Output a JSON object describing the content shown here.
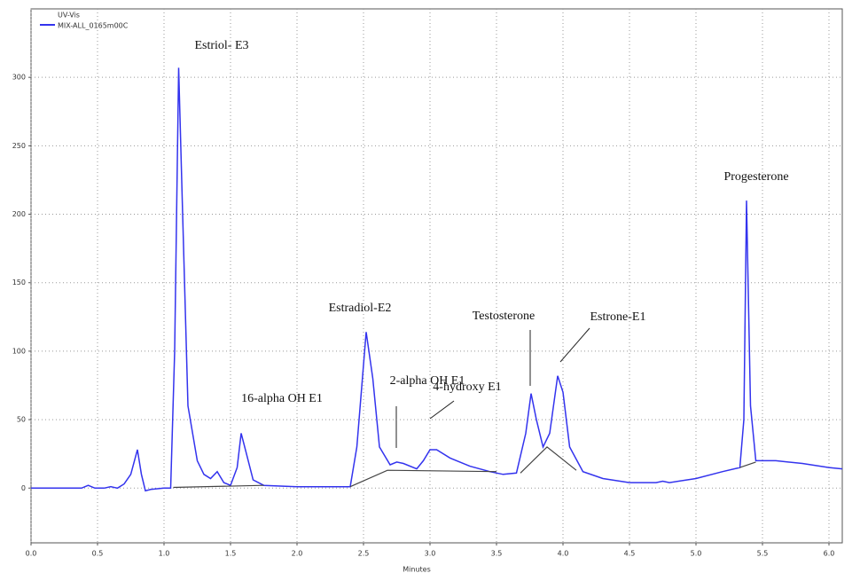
{
  "chart_data": {
    "type": "line",
    "legend_title": "UV-Vis",
    "x_label": "Minutes",
    "xlim": [
      0,
      6.1
    ],
    "ylim": [
      -40,
      350
    ],
    "xticks": [
      {
        "value": 0,
        "label": "0.0"
      },
      {
        "value": 0.5,
        "label": "0.5"
      },
      {
        "value": 1,
        "label": "1.0"
      },
      {
        "value": 1.5,
        "label": "1.5"
      },
      {
        "value": 2,
        "label": "2.0"
      },
      {
        "value": 2.5,
        "label": "2.5"
      },
      {
        "value": 3,
        "label": "3.0"
      },
      {
        "value": 3.5,
        "label": "3.5"
      },
      {
        "value": 4,
        "label": "4.0"
      },
      {
        "value": 4.5,
        "label": "4.5"
      },
      {
        "value": 5,
        "label": "5.0"
      },
      {
        "value": 5.5,
        "label": "5.5"
      },
      {
        "value": 6,
        "label": "6.0"
      }
    ],
    "yticks": [
      0,
      50,
      100,
      150,
      200,
      250,
      300
    ],
    "grid": true,
    "legend": "upper left",
    "series": [
      {
        "name": "MIX-ALL_0165m00C",
        "color": "#3333ee",
        "x": [
          0,
          0.38,
          0.43,
          0.48,
          0.55,
          0.6,
          0.65,
          0.7,
          0.75,
          0.8,
          0.83,
          0.86,
          0.9,
          1.0,
          1.05,
          1.08,
          1.11,
          1.14,
          1.18,
          1.25,
          1.3,
          1.35,
          1.4,
          1.45,
          1.5,
          1.55,
          1.58,
          1.62,
          1.67,
          1.75,
          2.0,
          2.4,
          2.45,
          2.52,
          2.57,
          2.62,
          2.7,
          2.75,
          2.8,
          2.9,
          2.95,
          3.0,
          3.05,
          3.15,
          3.3,
          3.45,
          3.55,
          3.65,
          3.72,
          3.76,
          3.8,
          3.85,
          3.9,
          3.96,
          4.0,
          4.05,
          4.15,
          4.3,
          4.5,
          4.7,
          4.75,
          4.8,
          5.0,
          5.2,
          5.33,
          5.36,
          5.38,
          5.41,
          5.45,
          5.6,
          5.8,
          6.0,
          6.1
        ],
        "values": [
          0,
          0,
          2,
          0,
          0,
          1,
          0,
          3,
          10,
          28,
          10,
          -2,
          -1,
          0,
          0,
          100,
          307,
          200,
          60,
          20,
          10,
          7,
          12,
          4,
          2,
          15,
          40,
          25,
          6,
          2,
          1,
          1,
          30,
          114,
          80,
          30,
          17,
          19,
          18,
          14,
          20,
          28,
          28,
          22,
          16,
          12,
          10,
          11,
          40,
          69,
          50,
          30,
          40,
          82,
          70,
          30,
          12,
          7,
          4,
          4,
          5,
          4,
          7,
          12,
          15,
          50,
          210,
          60,
          20,
          20,
          18,
          15,
          14
        ]
      },
      {
        "color": "#444444",
        "x": [
          1.07,
          1.75,
          null,
          2.4,
          2.68,
          3.5,
          null,
          3.68,
          3.88,
          4.1,
          null,
          5.33,
          5.45
        ],
        "values": [
          0.5,
          2,
          null,
          1,
          13,
          12,
          null,
          11,
          30,
          13,
          null,
          15,
          19
        ]
      }
    ],
    "annotations": [
      "Estriol- E3",
      "16-alpha OH E1",
      "Estradiol-E2",
      "2-alpha OH E1",
      "4-hydroxy E1",
      "Testosterone",
      "Estrone-E1",
      "Progesterone"
    ]
  }
}
